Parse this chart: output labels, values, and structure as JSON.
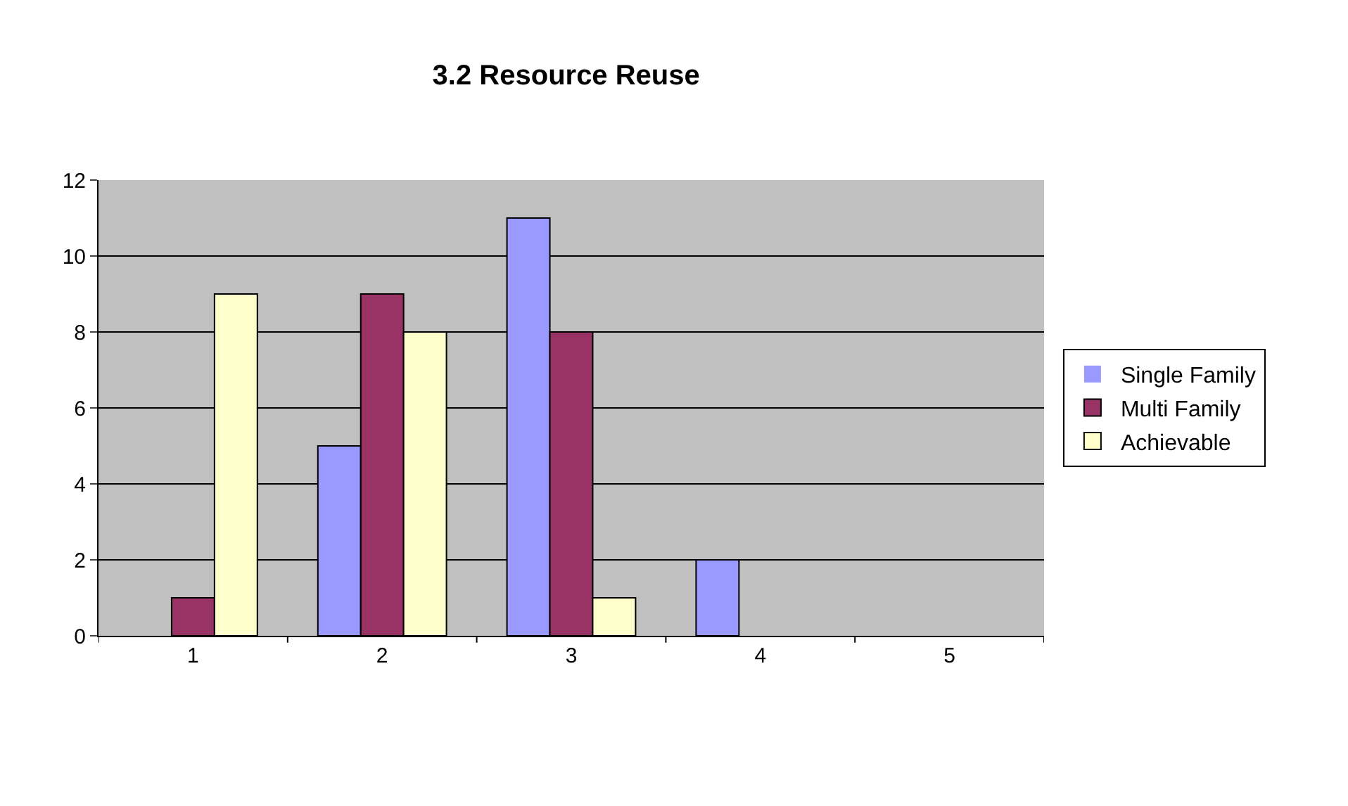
{
  "chart_data": {
    "type": "bar",
    "title": "3.2 Resource Reuse",
    "categories": [
      "1",
      "2",
      "3",
      "4",
      "5"
    ],
    "series": [
      {
        "name": "Single Family",
        "color": "#9999ff",
        "values": [
          0,
          5,
          11,
          2,
          0
        ]
      },
      {
        "name": "Multi Family",
        "color": "#993366",
        "values": [
          1,
          9,
          8,
          0,
          0
        ]
      },
      {
        "name": "Achievable",
        "color": "#ffffcc",
        "values": [
          9,
          8,
          1,
          0,
          0
        ]
      }
    ],
    "ylim": [
      0,
      12
    ],
    "yticks": [
      0,
      2,
      4,
      6,
      8,
      10,
      12
    ],
    "grid": "y",
    "legend": "right"
  }
}
